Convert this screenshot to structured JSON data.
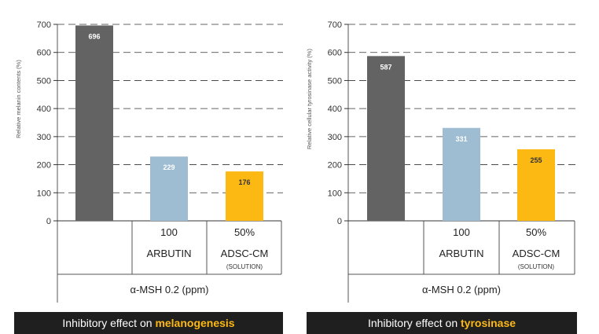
{
  "charts": [
    {
      "caption": {
        "prefix": "Inhibitory effect on ",
        "highlight": "melanogenesis"
      },
      "colors": {
        "highlight": "#fdb913"
      }
    },
    {
      "caption": {
        "prefix": "Inhibitory effect on ",
        "highlight": "tyrosinase"
      },
      "colors": {
        "highlight": "#fdb913"
      }
    }
  ],
  "chart_data": [
    {
      "type": "bar",
      "title": "",
      "ylabel": "Relative melanin contents (%)",
      "ylim": [
        0,
        700
      ],
      "yticks": [
        0,
        100,
        200,
        300,
        400,
        500,
        600,
        700
      ],
      "grid": true,
      "categories": [
        "",
        "100 ARBUTIN",
        "50% ADSC-CM (SOLUTION)"
      ],
      "category_labels": [
        {
          "top": "",
          "mid": "",
          "sub": ""
        },
        {
          "top": "100",
          "mid": "ARBUTIN",
          "sub": ""
        },
        {
          "top": "50%",
          "mid": "ADSC-CM",
          "sub": "(SOLUTION)"
        }
      ],
      "group_label": "α-MSH 0.2 (ppm)",
      "values": [
        696,
        229,
        176
      ],
      "value_labels": [
        "696",
        "229",
        "176"
      ],
      "bar_colors": [
        "#636363",
        "#9ebcd2",
        "#fdb913"
      ],
      "label_colors": [
        "#ffffff",
        "#ffffff",
        "#333333"
      ]
    },
    {
      "type": "bar",
      "title": "",
      "ylabel": "Relative cellular tyrosinase activity (%)",
      "ylim": [
        0,
        700
      ],
      "yticks": [
        0,
        100,
        200,
        300,
        400,
        500,
        600,
        700
      ],
      "grid": true,
      "categories": [
        "",
        "100 ARBUTIN",
        "50% ADSC-CM (SOLUTION)"
      ],
      "category_labels": [
        {
          "top": "",
          "mid": "",
          "sub": ""
        },
        {
          "top": "100",
          "mid": "ARBUTIN",
          "sub": ""
        },
        {
          "top": "50%",
          "mid": "ADSC-CM",
          "sub": "(SOLUTION)"
        }
      ],
      "group_label": "α-MSH 0.2 (ppm)",
      "values": [
        587,
        331,
        255
      ],
      "value_labels": [
        "587",
        "331",
        "255"
      ],
      "bar_colors": [
        "#636363",
        "#9ebcd2",
        "#fdb913"
      ],
      "label_colors": [
        "#ffffff",
        "#ffffff",
        "#333333"
      ]
    }
  ]
}
